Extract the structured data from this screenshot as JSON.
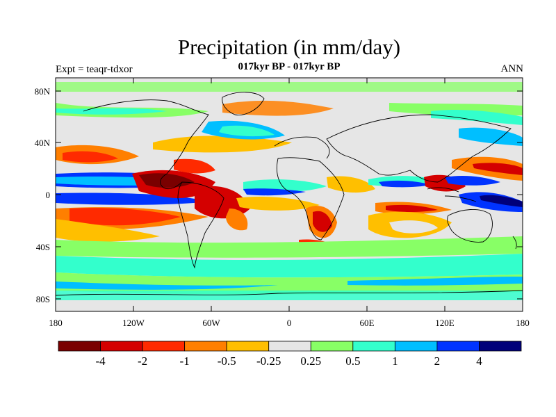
{
  "title": "Precipitation (in mm/day)",
  "subtitle": "017kyr BP - 017kyr BP",
  "left_label": "Expt = teaqr-tdxor",
  "right_label": "ANN",
  "map": {
    "y_ticks": [
      "80N",
      "40N",
      "0",
      "40S",
      "80S"
    ],
    "x_ticks": [
      "180",
      "120W",
      "60W",
      "0",
      "60E",
      "120E",
      "180"
    ]
  },
  "colorbar": {
    "colors": [
      "#7a0000",
      "#d40000",
      "#ff2a00",
      "#ff7f00",
      "#ffbf00",
      "#e6e6e6",
      "#88ff66",
      "#33ffcc",
      "#00bfff",
      "#0033ff",
      "#00007a"
    ],
    "labels": [
      "-4",
      "-2",
      "-1",
      "-0.5",
      "-0.25",
      "0.25",
      "0.5",
      "1",
      "2",
      "4"
    ]
  },
  "chart_data": {
    "type": "heatmap",
    "title": "Precipitation (in mm/day)",
    "subtitle": "017kyr BP - 017kyr BP",
    "levels": [
      -4,
      -2,
      -1,
      -0.5,
      -0.25,
      0.25,
      0.5,
      1,
      2,
      4
    ],
    "lon_range": [
      -180,
      180
    ],
    "lat_range": [
      -90,
      90
    ]
  }
}
